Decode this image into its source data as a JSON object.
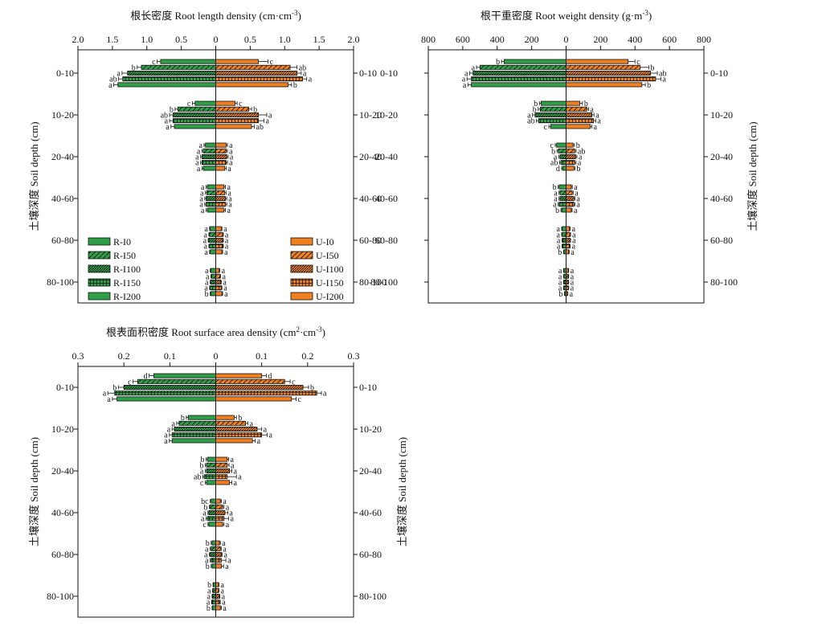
{
  "legend": {
    "rain": [
      "R-I0",
      "R-I50",
      "R-I100",
      "R-I150",
      "R-I200"
    ],
    "urea": [
      "U-I0",
      "U-I50",
      "U-I100",
      "U-I150",
      "U-I200"
    ]
  },
  "colors": {
    "rain": "#2e9e47",
    "urea": "#f07f1f",
    "frame": "#111111"
  },
  "y_axis_label": "土壤深度 Soil depth (cm)",
  "depths": [
    "0-10",
    "10-20",
    "20-40",
    "40-60",
    "60-80",
    "80-100"
  ],
  "chart_data": [
    {
      "type": "bar",
      "title": "根长密度 Root length density (cm·cm",
      "title_sup": "-3",
      "title_end": ")",
      "xlim": [
        -2.0,
        2.0
      ],
      "x_ticks": [
        "2.0",
        "1.5",
        "1.0",
        "0.5",
        "0",
        "0.5",
        "1.0",
        "1.5",
        "2.0"
      ],
      "categories": [
        "0-10",
        "10-20",
        "20-40",
        "40-60",
        "60-80",
        "80-100"
      ],
      "series": [
        {
          "name": "R-I0",
          "side": "left",
          "values": [
            0.8,
            0.3,
            0.15,
            0.12,
            0.08,
            0.07
          ],
          "errors": [
            0.05,
            0.04,
            0.02,
            0.02,
            0.01,
            0.01
          ],
          "letters": [
            "c",
            "c",
            "a",
            "a",
            "a",
            "a"
          ]
        },
        {
          "name": "R-I50",
          "side": "left",
          "values": [
            1.08,
            0.55,
            0.18,
            0.13,
            0.09,
            0.06
          ],
          "errors": [
            0.06,
            0.04,
            0.02,
            0.02,
            0.01,
            0.01
          ],
          "letters": [
            "b",
            "b",
            "a",
            "a",
            "a",
            "a"
          ]
        },
        {
          "name": "R-I100",
          "side": "left",
          "values": [
            1.28,
            0.62,
            0.2,
            0.14,
            0.1,
            0.07
          ],
          "errors": [
            0.08,
            0.05,
            0.02,
            0.02,
            0.01,
            0.01
          ],
          "letters": [
            "a",
            "ab",
            "a",
            "a",
            "a",
            "a"
          ]
        },
        {
          "name": "R-I150",
          "side": "left",
          "values": [
            1.35,
            0.62,
            0.2,
            0.14,
            0.09,
            0.08
          ],
          "errors": [
            0.06,
            0.05,
            0.02,
            0.02,
            0.01,
            0.01
          ],
          "letters": [
            "ab",
            "a",
            "a",
            "a",
            "a",
            "a"
          ]
        },
        {
          "name": "R-I200",
          "side": "left",
          "values": [
            1.42,
            0.6,
            0.18,
            0.12,
            0.08,
            0.07
          ],
          "errors": [
            0.06,
            0.05,
            0.02,
            0.02,
            0.01,
            0.01
          ],
          "letters": [
            "a",
            "a",
            "a",
            "a",
            "a",
            "b"
          ]
        },
        {
          "name": "U-I0",
          "side": "right",
          "values": [
            0.62,
            0.28,
            0.15,
            0.12,
            0.08,
            0.05
          ],
          "errors": [
            0.14,
            0.03,
            0.02,
            0.02,
            0.01,
            0.01
          ],
          "letters": [
            "c",
            "c",
            "a",
            "a",
            "a",
            "a"
          ]
        },
        {
          "name": "U-I50",
          "side": "right",
          "values": [
            1.08,
            0.48,
            0.15,
            0.13,
            0.1,
            0.06
          ],
          "errors": [
            0.1,
            0.04,
            0.02,
            0.02,
            0.01,
            0.01
          ],
          "letters": [
            "ab",
            "b",
            "a",
            "a",
            "a",
            "a"
          ]
        },
        {
          "name": "U-I100",
          "side": "right",
          "values": [
            1.18,
            0.62,
            0.16,
            0.14,
            0.1,
            0.07
          ],
          "errors": [
            0.06,
            0.12,
            0.02,
            0.02,
            0.01,
            0.01
          ],
          "letters": [
            "a",
            "a",
            "a",
            "a",
            "a",
            "a"
          ]
        },
        {
          "name": "U-I150",
          "side": "right",
          "values": [
            1.26,
            0.62,
            0.15,
            0.14,
            0.1,
            0.08
          ],
          "errors": [
            0.06,
            0.08,
            0.02,
            0.02,
            0.01,
            0.01
          ],
          "letters": [
            "a",
            "a",
            "a",
            "a",
            "a",
            "a"
          ]
        },
        {
          "name": "U-I200",
          "side": "right",
          "values": [
            1.05,
            0.52,
            0.13,
            0.12,
            0.09,
            0.09
          ],
          "errors": [
            0.05,
            0.04,
            0.02,
            0.02,
            0.01,
            0.01
          ],
          "letters": [
            "b",
            "ab",
            "a",
            "a",
            "a",
            "a"
          ]
        }
      ]
    },
    {
      "type": "bar",
      "title": "根干重密度 Root weight density (g·m",
      "title_sup": "-3",
      "title_end": ")",
      "xlim": [
        -800,
        800
      ],
      "x_ticks": [
        "800",
        "600",
        "400",
        "200",
        "0",
        "200",
        "400",
        "600",
        "800"
      ],
      "categories": [
        "0-10",
        "10-20",
        "20-40",
        "40-60",
        "60-80",
        "80-100"
      ],
      "series": [
        {
          "name": "R-I0",
          "side": "left",
          "values": [
            360,
            145,
            55,
            40,
            22,
            12
          ],
          "errors": [
            15,
            10,
            8,
            6,
            4,
            3
          ],
          "letters": [
            "b",
            "b",
            "c",
            "b",
            "a",
            "a"
          ]
        },
        {
          "name": "R-I50",
          "side": "left",
          "values": [
            500,
            150,
            45,
            35,
            22,
            12
          ],
          "errors": [
            20,
            12,
            8,
            6,
            4,
            3
          ],
          "letters": [
            "a",
            "b",
            "b",
            "a",
            "a",
            "a"
          ]
        },
        {
          "name": "R-I100",
          "side": "left",
          "values": [
            540,
            180,
            35,
            35,
            20,
            12
          ],
          "errors": [
            20,
            15,
            8,
            6,
            4,
            3
          ],
          "letters": [
            "a",
            "a",
            "a",
            "a",
            "a",
            "a"
          ]
        },
        {
          "name": "R-I150",
          "side": "left",
          "values": [
            550,
            160,
            30,
            40,
            20,
            12
          ],
          "errors": [
            25,
            12,
            8,
            6,
            4,
            3
          ],
          "letters": [
            "a",
            "ab",
            "ab",
            "a",
            "a",
            "a"
          ]
        },
        {
          "name": "R-I200",
          "side": "left",
          "values": [
            550,
            90,
            20,
            25,
            12,
            8
          ],
          "errors": [
            20,
            10,
            6,
            5,
            3,
            2
          ],
          "letters": [
            "a",
            "c",
            "d",
            "b",
            "b",
            "b"
          ]
        },
        {
          "name": "U-I0",
          "side": "right",
          "values": [
            360,
            80,
            40,
            30,
            20,
            12
          ],
          "errors": [
            40,
            15,
            8,
            6,
            4,
            3
          ],
          "letters": [
            "c",
            "b",
            "b",
            "a",
            "a",
            "a"
          ]
        },
        {
          "name": "U-I50",
          "side": "right",
          "values": [
            430,
            120,
            50,
            35,
            22,
            12
          ],
          "errors": [
            50,
            10,
            8,
            6,
            4,
            3
          ],
          "letters": [
            "b",
            "a",
            "ab",
            "a",
            "a",
            "a"
          ]
        },
        {
          "name": "U-I100",
          "side": "right",
          "values": [
            490,
            150,
            55,
            45,
            22,
            12
          ],
          "errors": [
            40,
            12,
            8,
            6,
            4,
            3
          ],
          "letters": [
            "ab",
            "a",
            "a",
            "a",
            "a",
            "a"
          ]
        },
        {
          "name": "U-I150",
          "side": "right",
          "values": [
            520,
            160,
            50,
            45,
            20,
            12
          ],
          "errors": [
            30,
            12,
            8,
            6,
            4,
            3
          ],
          "letters": [
            "a",
            "a",
            "a",
            "a",
            "a",
            "a"
          ]
        },
        {
          "name": "U-I200",
          "side": "right",
          "values": [
            440,
            140,
            45,
            30,
            15,
            8
          ],
          "errors": [
            20,
            10,
            6,
            5,
            3,
            2
          ],
          "letters": [
            "b",
            "a",
            "b",
            "a",
            "a",
            "a"
          ]
        }
      ]
    },
    {
      "type": "bar",
      "title": "根表面积密度 Root surface area density (cm",
      "title_sup": "2",
      "title_mid": "·cm",
      "title_sup2": "-3",
      "title_end": ")",
      "xlim": [
        -0.3,
        0.3
      ],
      "x_ticks": [
        "0.3",
        "0.2",
        "0.1",
        "0",
        "0.1",
        "0.2",
        "0.3"
      ],
      "categories": [
        "0-10",
        "10-20",
        "20-40",
        "40-60",
        "60-80",
        "80-100"
      ],
      "series": [
        {
          "name": "R-I0",
          "side": "left",
          "values": [
            0.135,
            0.06,
            0.018,
            0.01,
            0.008,
            0.005
          ],
          "errors": [
            0.01,
            0.004,
            0.003,
            0.002,
            0.002,
            0.001
          ],
          "letters": [
            "d",
            "b",
            "b",
            "bc",
            "b",
            "b"
          ]
        },
        {
          "name": "R-I50",
          "side": "left",
          "values": [
            0.17,
            0.08,
            0.02,
            0.012,
            0.01,
            0.006
          ],
          "errors": [
            0.01,
            0.005,
            0.003,
            0.002,
            0.002,
            0.001
          ],
          "letters": [
            "c",
            "a",
            "b",
            "b",
            "a",
            "a"
          ]
        },
        {
          "name": "R-I100",
          "side": "left",
          "values": [
            0.2,
            0.09,
            0.02,
            0.015,
            0.012,
            0.007
          ],
          "errors": [
            0.012,
            0.005,
            0.003,
            0.002,
            0.002,
            0.001
          ],
          "letters": [
            "b",
            "a",
            "a",
            "a",
            "a",
            "a"
          ]
        },
        {
          "name": "R-I150",
          "side": "left",
          "values": [
            0.22,
            0.095,
            0.025,
            0.018,
            0.01,
            0.008
          ],
          "errors": [
            0.015,
            0.006,
            0.003,
            0.003,
            0.002,
            0.001
          ],
          "letters": [
            "a",
            "a",
            "ab",
            "a",
            "a",
            "a"
          ]
        },
        {
          "name": "R-I200",
          "side": "left",
          "values": [
            0.215,
            0.095,
            0.02,
            0.015,
            0.008,
            0.007
          ],
          "errors": [
            0.01,
            0.006,
            0.003,
            0.002,
            0.002,
            0.001
          ],
          "letters": [
            "a",
            "a",
            "c",
            "c",
            "b",
            "b"
          ]
        },
        {
          "name": "U-I0",
          "side": "right",
          "values": [
            0.1,
            0.04,
            0.025,
            0.01,
            0.008,
            0.006
          ],
          "errors": [
            0.01,
            0.005,
            0.003,
            0.002,
            0.002,
            0.001
          ],
          "letters": [
            "d",
            "b",
            "a",
            "a",
            "a",
            "a"
          ]
        },
        {
          "name": "U-I50",
          "side": "right",
          "values": [
            0.15,
            0.065,
            0.025,
            0.015,
            0.01,
            0.006
          ],
          "errors": [
            0.012,
            0.005,
            0.004,
            0.003,
            0.002,
            0.001
          ],
          "letters": [
            "c",
            "a",
            "a",
            "a",
            "a",
            "a"
          ]
        },
        {
          "name": "U-I100",
          "side": "right",
          "values": [
            0.19,
            0.09,
            0.03,
            0.02,
            0.012,
            0.008
          ],
          "errors": [
            0.012,
            0.01,
            0.005,
            0.006,
            0.002,
            0.001
          ],
          "letters": [
            "b",
            "a",
            "a",
            "a",
            "a",
            "a"
          ]
        },
        {
          "name": "U-I150",
          "side": "right",
          "values": [
            0.22,
            0.1,
            0.025,
            0.018,
            0.012,
            0.008
          ],
          "errors": [
            0.01,
            0.012,
            0.02,
            0.01,
            0.01,
            0.002
          ],
          "letters": [
            "a",
            "a",
            "a",
            "a",
            "a",
            "a"
          ]
        },
        {
          "name": "U-I200",
          "side": "right",
          "values": [
            0.165,
            0.08,
            0.03,
            0.015,
            0.012,
            0.01
          ],
          "errors": [
            0.01,
            0.006,
            0.005,
            0.003,
            0.005,
            0.002
          ],
          "letters": [
            "c",
            "a",
            "a",
            "a",
            "a",
            "a"
          ]
        }
      ]
    }
  ]
}
